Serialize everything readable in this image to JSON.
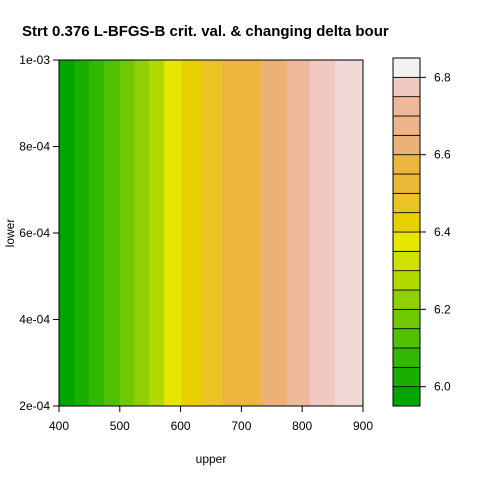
{
  "chart_data": {
    "type": "heatmap",
    "title": "Strt 0.376 L-BFGS-B crit. val. & changing delta bour",
    "xlabel": "upper",
    "ylabel": "lower",
    "xlim": [
      400,
      900
    ],
    "ylim": [
      0.0002,
      0.001
    ],
    "x_ticks": [
      {
        "value": 400,
        "label": "400"
      },
      {
        "value": 500,
        "label": "500"
      },
      {
        "value": 600,
        "label": "600"
      },
      {
        "value": 700,
        "label": "700"
      },
      {
        "value": 800,
        "label": "800"
      },
      {
        "value": 900,
        "label": "900"
      }
    ],
    "y_ticks": [
      {
        "value": 0.0002,
        "label": "2e-04"
      },
      {
        "value": 0.0004,
        "label": "4e-04"
      },
      {
        "value": 0.0006,
        "label": "6e-04"
      },
      {
        "value": 0.0008,
        "label": "8e-04"
      },
      {
        "value": 0.001,
        "label": "1e-03"
      }
    ],
    "bands": [
      {
        "x0": 400,
        "x1": 425,
        "color": "#00a600"
      },
      {
        "x0": 425,
        "x1": 449,
        "color": "#19af00"
      },
      {
        "x0": 449,
        "x1": 474,
        "color": "#33b800"
      },
      {
        "x0": 474,
        "x1": 500,
        "color": "#50c000"
      },
      {
        "x0": 500,
        "x1": 524,
        "color": "#6ec900"
      },
      {
        "x0": 524,
        "x1": 548,
        "color": "#8fd100"
      },
      {
        "x0": 548,
        "x1": 573,
        "color": "#b3da00"
      },
      {
        "x0": 573,
        "x1": 601,
        "color": "#e6e600"
      },
      {
        "x0": 601,
        "x1": 635,
        "color": "#e8d000"
      },
      {
        "x0": 635,
        "x1": 668,
        "color": "#e9c424"
      },
      {
        "x0": 668,
        "x1": 733,
        "color": "#ebb53e"
      },
      {
        "x0": 733,
        "x1": 775,
        "color": "#ecb176"
      },
      {
        "x0": 775,
        "x1": 812,
        "color": "#eeb99a"
      },
      {
        "x0": 812,
        "x1": 854,
        "color": "#f0c9c0"
      },
      {
        "x0": 854,
        "x1": 900,
        "color": "#f0d9d4"
      }
    ],
    "colorbar": {
      "range": [
        5.95,
        6.85
      ],
      "ticks": [
        {
          "value": 6.0,
          "label": "6.0"
        },
        {
          "value": 6.2,
          "label": "6.2"
        },
        {
          "value": 6.4,
          "label": "6.4"
        },
        {
          "value": 6.6,
          "label": "6.6"
        },
        {
          "value": 6.8,
          "label": "6.8"
        }
      ],
      "levels": [
        {
          "from": 5.95,
          "to": 6.0,
          "color": "#00a600"
        },
        {
          "from": 6.0,
          "to": 6.05,
          "color": "#19af00"
        },
        {
          "from": 6.05,
          "to": 6.1,
          "color": "#33b800"
        },
        {
          "from": 6.1,
          "to": 6.15,
          "color": "#50c000"
        },
        {
          "from": 6.15,
          "to": 6.2,
          "color": "#6ec900"
        },
        {
          "from": 6.2,
          "to": 6.25,
          "color": "#8fd100"
        },
        {
          "from": 6.25,
          "to": 6.3,
          "color": "#b3da00"
        },
        {
          "from": 6.3,
          "to": 6.35,
          "color": "#d0e000"
        },
        {
          "from": 6.35,
          "to": 6.4,
          "color": "#e6e600"
        },
        {
          "from": 6.4,
          "to": 6.45,
          "color": "#e8d000"
        },
        {
          "from": 6.45,
          "to": 6.5,
          "color": "#e9c424"
        },
        {
          "from": 6.5,
          "to": 6.55,
          "color": "#eaba38"
        },
        {
          "from": 6.55,
          "to": 6.6,
          "color": "#ebb53e"
        },
        {
          "from": 6.6,
          "to": 6.65,
          "color": "#ecb176"
        },
        {
          "from": 6.65,
          "to": 6.7,
          "color": "#edb48a"
        },
        {
          "from": 6.7,
          "to": 6.75,
          "color": "#eeb99a"
        },
        {
          "from": 6.75,
          "to": 6.8,
          "color": "#f0c9c0"
        },
        {
          "from": 6.8,
          "to": 6.85,
          "color": "#f2f2f2"
        }
      ]
    }
  }
}
